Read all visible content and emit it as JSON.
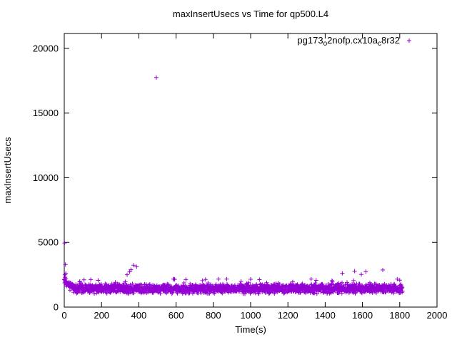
{
  "window": {
    "background": "#ffffff"
  },
  "chart_data": {
    "type": "scatter",
    "title": "maxInsertUsecs vs Time for qp500.L4",
    "xlabel": "Time(s)",
    "ylabel": "maxInsertUsecs",
    "xlim": [
      0,
      2000
    ],
    "ylim": [
      0,
      21150
    ],
    "xticks": [
      0,
      200,
      400,
      600,
      800,
      1000,
      1200,
      1400,
      1600,
      1800,
      2000
    ],
    "yticks": [
      0,
      5000,
      10000,
      15000,
      20000
    ],
    "grid": false,
    "legend_position": "top-right-inside",
    "series": [
      {
        "name": "pg173_o2nofp.cx10a_c8r32",
        "label_parts": [
          {
            "text": "pg173"
          },
          {
            "text": "o",
            "subscript": true
          },
          {
            "text": "2nofp.cx10a"
          },
          {
            "text": "c",
            "subscript": true
          },
          {
            "text": "8r32"
          }
        ],
        "marker": "plus",
        "color": "#9400D3",
        "outliers": [
          [
            2,
            4950
          ],
          [
            6,
            3290
          ],
          [
            8,
            2600
          ],
          [
            3,
            2500
          ],
          [
            337,
            2500
          ],
          [
            351,
            2720
          ],
          [
            358,
            2890
          ],
          [
            372,
            3240
          ],
          [
            388,
            3120
          ],
          [
            494,
            17750
          ],
          [
            1492,
            2610
          ],
          [
            1558,
            2780
          ],
          [
            1594,
            2520
          ],
          [
            1618,
            2740
          ],
          [
            1709,
            2870
          ],
          [
            1800,
            2080
          ]
        ],
        "band": {
          "seed": 1337,
          "x_start": 0,
          "x_end": 1815,
          "x_step": 0.9,
          "y_center": 1420,
          "y_spread": 420,
          "upper_tail_probability": 0.05,
          "upper_tail_extra_max": 700,
          "y_min": 720,
          "y_max": 2160,
          "warmup": {
            "x_until": 55,
            "y_center_start": 2000,
            "extra_max": 350
          }
        }
      }
    ]
  }
}
